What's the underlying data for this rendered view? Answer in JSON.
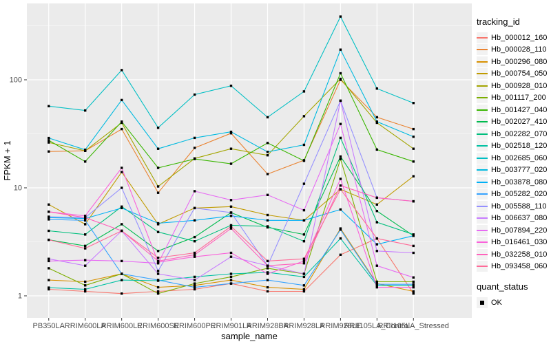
{
  "figure": {
    "panel_bg": "#EBEBEB",
    "grid_color": "#FFFFFF",
    "tick_mark_color": "#333333",
    "tick_label_color": "#4D4D4D",
    "axis_title_color": "#000000",
    "point_color": "#000000",
    "legend_key_bg": "#F2F2F2"
  },
  "legend": {
    "tracking_title": "tracking_id",
    "quant_title": "quant_status",
    "quant_items": [
      "OK"
    ]
  },
  "chart_data": {
    "type": "line",
    "xlabel": "sample_name",
    "ylabel": "FPKM + 1",
    "y_scale": "log10",
    "y_ticks": [
      {
        "value": 100,
        "label": "100"
      },
      {
        "value": 10,
        "label": "10"
      },
      {
        "value": 1,
        "label": "1"
      }
    ],
    "y_minor_ticks": [
      3.162,
      31.62,
      316.2
    ],
    "ylim_approx": [
      1,
      500
    ],
    "grid": true,
    "legend_position": "right",
    "point_marker": "black-square",
    "x_categories": [
      "PB350LA",
      "RRIM600LA",
      "RRIM600LE",
      "RRIM600SE",
      "RRIM600PE",
      "RRIM901LA",
      "RRIM928BA",
      "RRIM928LA",
      "RRIM928LE",
      "RRII105LA_Control",
      "RRII105LA_Stressed"
    ],
    "series": [
      {
        "name": "Hb_000012_160",
        "color": "#F8766D",
        "values": [
          1.15,
          1.1,
          1.05,
          1.1,
          1.15,
          1.3,
          1.1,
          1.1,
          2.4,
          3.4,
          1.05
        ]
      },
      {
        "name": "Hb_000028_110",
        "color": "#EA8331",
        "values": [
          21.7,
          22,
          35,
          9.0,
          23.4,
          32,
          13.4,
          18,
          100,
          45,
          35
        ]
      },
      {
        "name": "Hb_000296_080",
        "color": "#D89000",
        "values": [
          1.4,
          1.35,
          1.6,
          1.2,
          1.25,
          1.4,
          1.2,
          1.15,
          4.2,
          1.3,
          1.1
        ]
      },
      {
        "name": "Hb_000754_050",
        "color": "#C09B00",
        "values": [
          7.0,
          4.6,
          14,
          4.6,
          6.5,
          6.7,
          5.6,
          5.0,
          9.7,
          7.0,
          12.8
        ]
      },
      {
        "name": "Hb_000928_010",
        "color": "#A3A500",
        "values": [
          26.3,
          22,
          40,
          10.3,
          18.7,
          23,
          20,
          46,
          102,
          40,
          23
        ]
      },
      {
        "name": "Hb_001117_200",
        "color": "#7CAE00",
        "values": [
          1.8,
          1.25,
          1.6,
          1.05,
          1.3,
          1.5,
          1.8,
          1.6,
          18.5,
          1.35,
          1.35
        ]
      },
      {
        "name": "Hb_001427_040",
        "color": "#39B600",
        "values": [
          27.5,
          17.5,
          41,
          15.3,
          18.5,
          16.7,
          26,
          17.8,
          115,
          22.6,
          17.5
        ]
      },
      {
        "name": "Hb_002027_410",
        "color": "#00BB4E",
        "values": [
          3.3,
          2.9,
          4.6,
          2.6,
          3.5,
          5.9,
          4.3,
          3.7,
          19.5,
          6.1,
          3.6
        ]
      },
      {
        "name": "Hb_002282_070",
        "color": "#00BF7D",
        "values": [
          4.0,
          3.7,
          6.7,
          3.9,
          3.2,
          4.5,
          4.4,
          3.2,
          29,
          4.8,
          3.7
        ]
      },
      {
        "name": "Hb_002518_120",
        "color": "#00C1A3",
        "values": [
          1.19,
          1.15,
          1.4,
          1.38,
          1.5,
          1.6,
          1.65,
          1.5,
          3.4,
          1.25,
          1.25
        ]
      },
      {
        "name": "Hb_002685_060",
        "color": "#00BFC4",
        "values": [
          57,
          52,
          123,
          36,
          73,
          88,
          45,
          78,
          385,
          83,
          61
        ]
      },
      {
        "name": "Hb_003777_020",
        "color": "#00BAE0",
        "values": [
          28.9,
          22.5,
          65,
          23,
          29,
          33,
          21.5,
          25,
          190,
          41,
          29.7
        ]
      },
      {
        "name": "Hb_003878_080",
        "color": "#00B0F6",
        "values": [
          5.3,
          5.2,
          6.5,
          4.7,
          5.0,
          5.5,
          5.0,
          5.0,
          6.3,
          3.0,
          3.6
        ]
      },
      {
        "name": "Hb_005282_020",
        "color": "#35A2FF",
        "values": [
          5.1,
          5.0,
          1.6,
          1.4,
          1.2,
          1.3,
          1.4,
          1.25,
          4.1,
          1.28,
          1.28
        ]
      },
      {
        "name": "Hb_005588_110",
        "color": "#9590FF",
        "values": [
          5.4,
          5.3,
          10,
          1.7,
          6.5,
          5.9,
          1.9,
          10.9,
          64,
          8.1,
          7.5
        ]
      },
      {
        "name": "Hb_006637_080",
        "color": "#C77CFF",
        "values": [
          2.2,
          1.9,
          4.0,
          1.6,
          1.4,
          2.3,
          1.9,
          1.6,
          64,
          2.6,
          2.5
        ]
      },
      {
        "name": "Hb_007894_220",
        "color": "#E76BF3",
        "values": [
          2.1,
          2.14,
          2.1,
          2.0,
          9.3,
          7.7,
          8.6,
          6.2,
          39,
          1.9,
          1.48
        ]
      },
      {
        "name": "Hb_016461_030",
        "color": "#FA62DB",
        "values": [
          6.0,
          5.5,
          15.3,
          2.05,
          2.3,
          2.5,
          1.6,
          2.1,
          12.1,
          1.2,
          1.2
        ]
      },
      {
        "name": "Hb_032258_010",
        "color": "#FF62BC",
        "values": [
          6.0,
          5.3,
          4.0,
          2.1,
          2.4,
          4.2,
          1.9,
          2.0,
          10.5,
          8.1,
          7.5
        ]
      },
      {
        "name": "Hb_093458_060",
        "color": "#FF6A98",
        "values": [
          3.3,
          2.75,
          4.0,
          2.25,
          2.5,
          4.4,
          2.1,
          2.2,
          9.7,
          3.4,
          2.9
        ]
      }
    ]
  }
}
